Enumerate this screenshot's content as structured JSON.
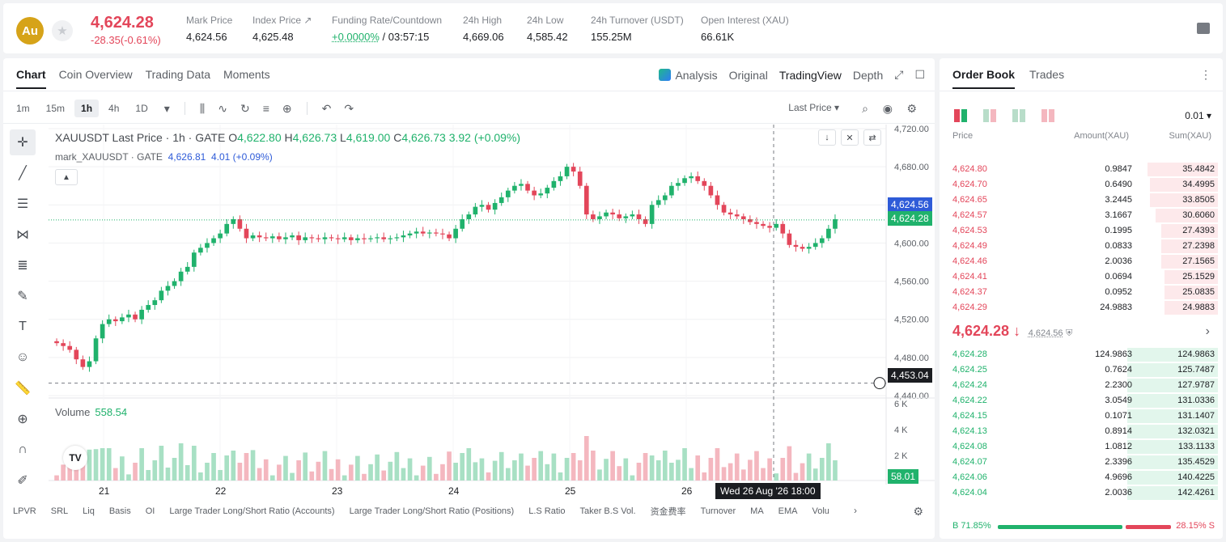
{
  "header": {
    "coin_symbol": "Au",
    "price": "4,624.28",
    "change": "-28.35(-0.61%)",
    "stats": [
      {
        "label": "Mark Price",
        "value": "4,624.56"
      },
      {
        "label": "Index Price ↗",
        "value": "4,625.48"
      },
      {
        "label": "Funding Rate/Countdown",
        "value_rate": "+0.0000%",
        "value_countdown": "/ 03:57:15"
      },
      {
        "label": "24h High",
        "value": "4,669.06"
      },
      {
        "label": "24h Low",
        "value": "4,585.42"
      },
      {
        "label": "24h Turnover (USDT)",
        "value": "155.25M"
      },
      {
        "label": "Open Interest (XAU)",
        "value": "66.61K"
      }
    ]
  },
  "chart_tabs": [
    "Chart",
    "Coin Overview",
    "Trading Data",
    "Moments"
  ],
  "chart_modes": {
    "analysis": "Analysis",
    "original": "Original",
    "tradingview": "TradingView",
    "depth": "Depth"
  },
  "timeframes": [
    "1m",
    "15m",
    "1h",
    "4h",
    "1D"
  ],
  "last_price_select": "Last Price",
  "legend": {
    "title": "XAUUSDT Last Price · 1h · GATE",
    "o_label": "O",
    "o": "4,622.80",
    "h_label": "H",
    "h": "4,626.73",
    "l_label": "L",
    "l": "4,619.00",
    "c_label": "C",
    "c": "4,626.73",
    "chg": "3.92 (+0.09%)",
    "mark_title": "mark_XAUUSDT · GATE",
    "mark_val": "4,626.81",
    "mark_chg": "4.01 (+0.09%)"
  },
  "volume_legend": {
    "label": "Volume",
    "value": "558.54"
  },
  "price_tags": {
    "mark": "4,624.56",
    "last": "4,624.28",
    "crosshair": "4,453.04",
    "volume": "58.01"
  },
  "date_tag": "Wed 26 Aug '26   18:00",
  "bottom_indicators": [
    "LPVR",
    "SRL",
    "Liq",
    "Basis",
    "OI",
    "Large Trader Long/Short Ratio (Accounts)",
    "Large Trader Long/Short Ratio (Positions)",
    "L.S Ratio",
    "Taker B.S Vol.",
    "资金费率",
    "Turnover",
    "MA",
    "EMA",
    "Volu"
  ],
  "chart_data": {
    "type": "candlestick",
    "title": "XAUUSDT Last Price · 1h · GATE",
    "y_ticks": [
      "4,720.00",
      "4,680.00",
      "4,640.00",
      "4,600.00",
      "4,560.00",
      "4,520.00",
      "4,480.00",
      "4,440.00"
    ],
    "ylim": [
      4440,
      4720
    ],
    "x_ticks": [
      "21",
      "22",
      "23",
      "24",
      "25",
      "26"
    ],
    "volume_ticks": [
      "6 K",
      "4 K",
      "2 K"
    ],
    "close_series": [
      4495,
      4492,
      4488,
      4478,
      4470,
      4476,
      4500,
      4515,
      4520,
      4518,
      4522,
      4525,
      4520,
      4530,
      4535,
      4540,
      4550,
      4555,
      4560,
      4570,
      4575,
      4590,
      4595,
      4600,
      4605,
      4610,
      4620,
      4625,
      4615,
      4605,
      4608,
      4606,
      4605,
      4607,
      4604,
      4606,
      4608,
      4603,
      4606,
      4605,
      4604,
      4606,
      4605,
      4604,
      4606,
      4603,
      4605,
      4604,
      4605,
      4606,
      4604,
      4605,
      4606,
      4608,
      4610,
      4612,
      4610,
      4611,
      4610,
      4609,
      4605,
      4615,
      4625,
      4630,
      4638,
      4640,
      4635,
      4642,
      4648,
      4655,
      4660,
      4662,
      4655,
      4650,
      4652,
      4658,
      4665,
      4670,
      4680,
      4675,
      4660,
      4630,
      4625,
      4628,
      4632,
      4630,
      4626,
      4628,
      4630,
      4625,
      4620,
      4640,
      4645,
      4650,
      4660,
      4663,
      4668,
      4670,
      4665,
      4660,
      4650,
      4640,
      4632,
      4630,
      4628,
      4625,
      4622,
      4620,
      4618,
      4616,
      4620,
      4610,
      4598,
      4596,
      4594,
      4596,
      4600,
      4605,
      4615,
      4625
    ]
  },
  "order_book": {
    "tabs": [
      "Order Book",
      "Trades"
    ],
    "precision": "0.01 ▾",
    "headers": {
      "price": "Price",
      "amount": "Amount(XAU)",
      "sum": "Sum(XAU)"
    },
    "asks": [
      {
        "price": "4,624.80",
        "amount": "0.9847",
        "sum": "35.4842",
        "depth": 0.25
      },
      {
        "price": "4,624.70",
        "amount": "0.6490",
        "sum": "34.4995",
        "depth": 0.24
      },
      {
        "price": "4,624.65",
        "amount": "3.2445",
        "sum": "33.8505",
        "depth": 0.24
      },
      {
        "price": "4,624.57",
        "amount": "3.1667",
        "sum": "30.6060",
        "depth": 0.22
      },
      {
        "price": "4,624.53",
        "amount": "0.1995",
        "sum": "27.4393",
        "depth": 0.2
      },
      {
        "price": "4,624.49",
        "amount": "0.0833",
        "sum": "27.2398",
        "depth": 0.2
      },
      {
        "price": "4,624.46",
        "amount": "2.0036",
        "sum": "27.1565",
        "depth": 0.2
      },
      {
        "price": "4,624.41",
        "amount": "0.0694",
        "sum": "25.1529",
        "depth": 0.19
      },
      {
        "price": "4,624.37",
        "amount": "0.0952",
        "sum": "25.0835",
        "depth": 0.19
      },
      {
        "price": "4,624.29",
        "amount": "24.9883",
        "sum": "24.9883",
        "depth": 0.19
      }
    ],
    "mid_price": "4,624.28 ↓",
    "mid_mark": "4,624.56",
    "bids": [
      {
        "price": "4,624.28",
        "amount": "124.9863",
        "sum": "124.9863",
        "depth": 0.32
      },
      {
        "price": "4,624.25",
        "amount": "0.7624",
        "sum": "125.7487",
        "depth": 0.32
      },
      {
        "price": "4,624.24",
        "amount": "2.2300",
        "sum": "127.9787",
        "depth": 0.32
      },
      {
        "price": "4,624.22",
        "amount": "3.0549",
        "sum": "131.0336",
        "depth": 0.32
      },
      {
        "price": "4,624.15",
        "amount": "0.1071",
        "sum": "131.1407",
        "depth": 0.32
      },
      {
        "price": "4,624.13",
        "amount": "0.8914",
        "sum": "132.0321",
        "depth": 0.32
      },
      {
        "price": "4,624.08",
        "amount": "1.0812",
        "sum": "133.1133",
        "depth": 0.32
      },
      {
        "price": "4,624.07",
        "amount": "2.3396",
        "sum": "135.4529",
        "depth": 0.32
      },
      {
        "price": "4,624.06",
        "amount": "4.9696",
        "sum": "140.4225",
        "depth": 0.32
      },
      {
        "price": "4,624.04",
        "amount": "2.0036",
        "sum": "142.4261",
        "depth": 0.32
      }
    ],
    "buy_ratio": "B 71.85%",
    "sell_ratio": "28.15% S",
    "buy_fraction": 0.7185
  },
  "colors": {
    "up": "#20b26c",
    "down": "#e3465a",
    "mark_tag": "#2e5bd8"
  }
}
